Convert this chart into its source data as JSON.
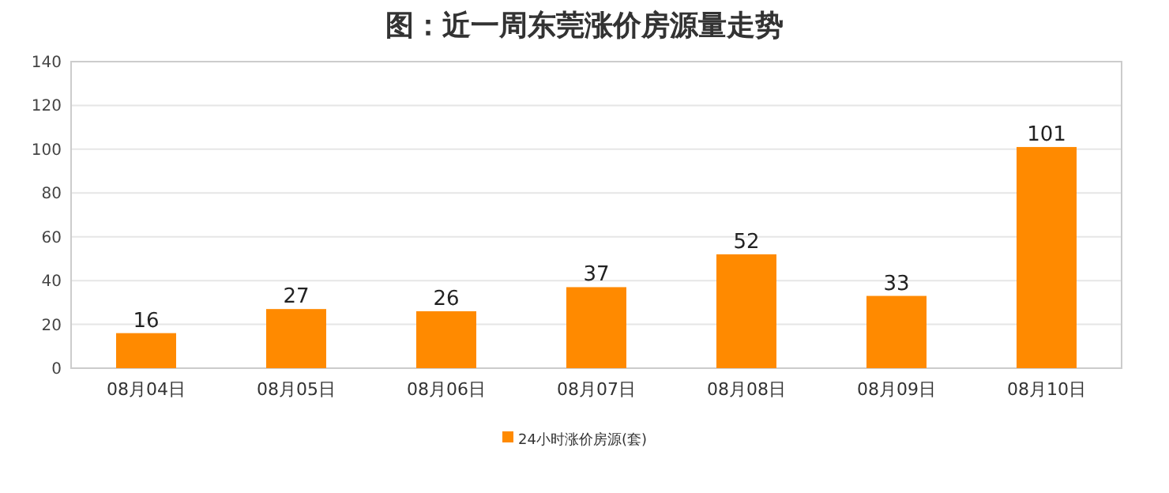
{
  "chart_data": {
    "type": "bar",
    "title": "图：近一周东莞涨价房源量走势",
    "categories": [
      "08月04日",
      "08月05日",
      "08月06日",
      "08月07日",
      "08月08日",
      "08月09日",
      "08月10日"
    ],
    "series": [
      {
        "name": "24小时涨价房源(套)",
        "color": "#ff8a00",
        "values": [
          16,
          27,
          26,
          37,
          52,
          33,
          101
        ]
      }
    ],
    "ylim": [
      0,
      140
    ],
    "yticks": [
      0,
      20,
      40,
      60,
      80,
      100,
      120,
      140
    ],
    "grid": "y",
    "legend": "bottom",
    "data_labels": true
  }
}
